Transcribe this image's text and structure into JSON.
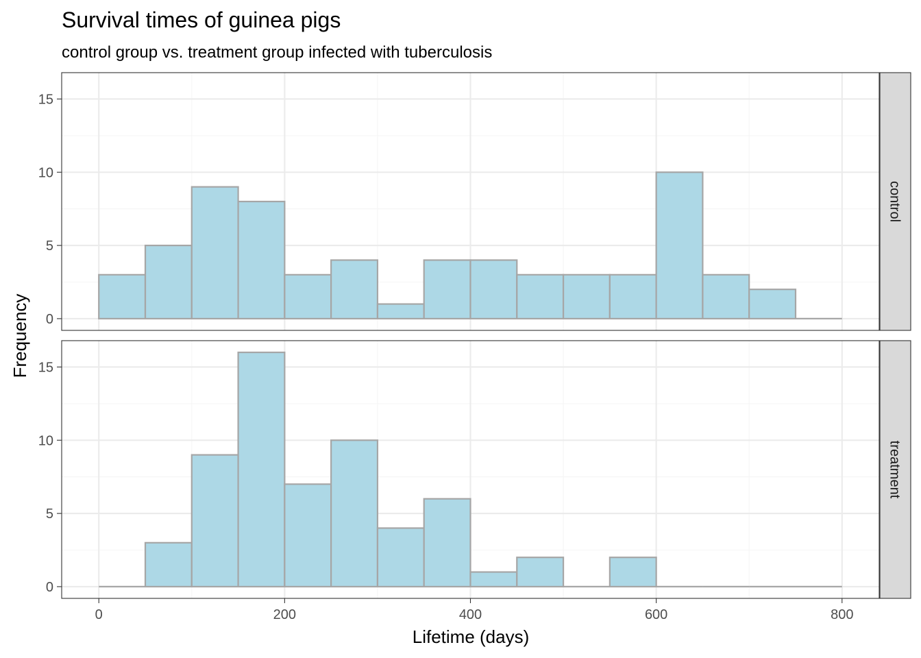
{
  "chart_data": {
    "type": "bar",
    "title": "Survival times of guinea pigs",
    "subtitle": "control group vs. treatment group infected with tuberculosis",
    "xlabel": "Lifetime (days)",
    "ylabel": "Frequency",
    "xlim": [
      -40,
      840
    ],
    "ylim": [
      -0.8,
      16.8
    ],
    "xticks": [
      0,
      200,
      400,
      600,
      800
    ],
    "yticks": [
      0,
      5,
      10,
      15
    ],
    "bin_width": 50,
    "bin_starts": [
      0,
      50,
      100,
      150,
      200,
      250,
      300,
      350,
      400,
      450,
      500,
      550,
      600,
      650,
      700,
      750
    ],
    "grid": true,
    "facets": [
      {
        "name": "control",
        "values": [
          3,
          5,
          9,
          8,
          3,
          4,
          1,
          4,
          4,
          3,
          3,
          3,
          10,
          3,
          2,
          0
        ]
      },
      {
        "name": "treatment",
        "values": [
          0,
          3,
          9,
          16,
          7,
          10,
          4,
          6,
          1,
          2,
          0,
          2,
          0,
          0,
          0,
          0
        ]
      }
    ],
    "colors": {
      "fill": "#add8e6",
      "outline": "#a6a6a6",
      "grid_major": "#ebebeb",
      "grid_minor": "#f5f5f5",
      "panel_border": "#333333",
      "strip_fill": "#d9d9d9"
    }
  }
}
